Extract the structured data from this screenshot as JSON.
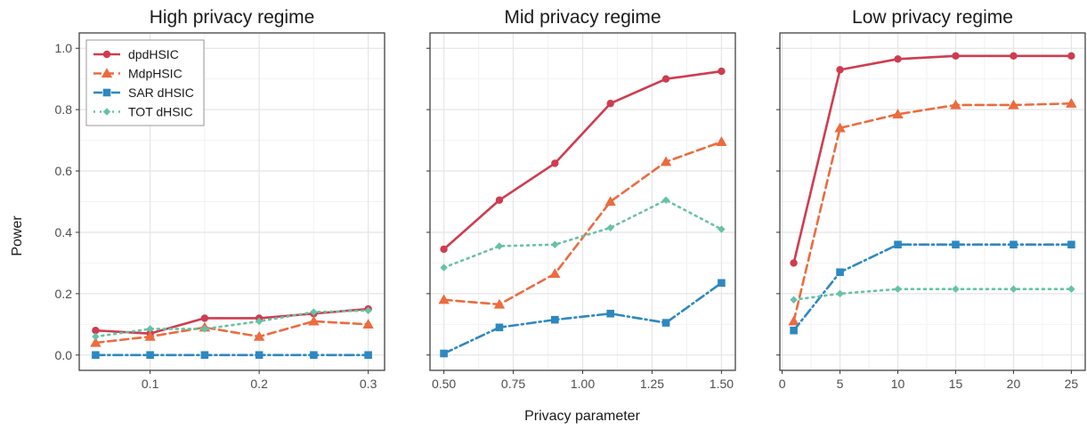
{
  "figure": {
    "ylabel": "Power",
    "xlabel": "Privacy parameter"
  },
  "series_styles": [
    {
      "name": "dpdHSIC",
      "color": "#cf3c4f",
      "marker": "circle",
      "dash": "solid"
    },
    {
      "name": "MdpHSIC",
      "color": "#ec6b3f",
      "marker": "triangle",
      "dash": "dashed"
    },
    {
      "name": "SAR dHSIC",
      "color": "#2e88c0",
      "marker": "square",
      "dash": "dotdash"
    },
    {
      "name": "TOT dHSIC",
      "color": "#66c2a5",
      "marker": "diamond",
      "dash": "dotted"
    }
  ],
  "legend": {
    "placement": "top-left of first panel",
    "entries": [
      "dpdHSIC",
      "MdpHSIC",
      "SAR dHSIC",
      "TOT dHSIC"
    ]
  },
  "chart_data": [
    {
      "type": "line",
      "title": "High privacy regime",
      "x": [
        0.05,
        0.1,
        0.15,
        0.2,
        0.25,
        0.3
      ],
      "xlim": [
        0.05,
        0.3
      ],
      "xticks": [
        0.1,
        0.2,
        0.3
      ],
      "xtick_labels": [
        "0.1",
        "0.2",
        "0.3"
      ],
      "ylim": [
        0,
        1
      ],
      "yticks": [
        0,
        0.2,
        0.4,
        0.6,
        0.8,
        1
      ],
      "ytick_labels": [
        "0.0",
        "0.2",
        "0.4",
        "0.6",
        "0.8",
        "1.0"
      ],
      "grid": true,
      "series": [
        {
          "name": "dpdHSIC",
          "values": [
            0.08,
            0.07,
            0.12,
            0.12,
            0.135,
            0.15
          ]
        },
        {
          "name": "MdpHSIC",
          "values": [
            0.04,
            0.06,
            0.09,
            0.06,
            0.11,
            0.1
          ]
        },
        {
          "name": "SAR dHSIC",
          "values": [
            0.0,
            0.0,
            0.0,
            0.0,
            0.0,
            0.0
          ]
        },
        {
          "name": "TOT dHSIC",
          "values": [
            0.06,
            0.085,
            0.085,
            0.11,
            0.14,
            0.145
          ]
        }
      ]
    },
    {
      "type": "line",
      "title": "Mid privacy regime",
      "x": [
        0.5,
        0.7,
        0.9,
        1.1,
        1.3,
        1.5
      ],
      "xlim": [
        0.5,
        1.5
      ],
      "xticks": [
        0.5,
        0.75,
        1.0,
        1.25,
        1.5
      ],
      "xtick_labels": [
        "0.50",
        "0.75",
        "1.00",
        "1.25",
        "1.50"
      ],
      "ylim": [
        0,
        1
      ],
      "grid": true,
      "series": [
        {
          "name": "dpdHSIC",
          "values": [
            0.345,
            0.505,
            0.625,
            0.82,
            0.9,
            0.925
          ]
        },
        {
          "name": "MdpHSIC",
          "values": [
            0.18,
            0.165,
            0.265,
            0.5,
            0.63,
            0.695
          ]
        },
        {
          "name": "SAR dHSIC",
          "values": [
            0.005,
            0.09,
            0.115,
            0.135,
            0.105,
            0.235
          ]
        },
        {
          "name": "TOT dHSIC",
          "values": [
            0.285,
            0.355,
            0.36,
            0.415,
            0.505,
            0.41
          ]
        }
      ]
    },
    {
      "type": "line",
      "title": "Low privacy regime",
      "x": [
        1,
        5,
        10,
        15,
        20,
        25
      ],
      "xlim": [
        1,
        25
      ],
      "xticks": [
        0,
        5,
        10,
        15,
        20,
        25
      ],
      "xtick_labels": [
        "0",
        "5",
        "10",
        "15",
        "20",
        "25"
      ],
      "ylim": [
        0,
        1
      ],
      "grid": true,
      "series": [
        {
          "name": "dpdHSIC",
          "values": [
            0.3,
            0.93,
            0.965,
            0.975,
            0.975,
            0.975
          ]
        },
        {
          "name": "MdpHSIC",
          "values": [
            0.11,
            0.74,
            0.785,
            0.815,
            0.815,
            0.82
          ]
        },
        {
          "name": "SAR dHSIC",
          "values": [
            0.08,
            0.27,
            0.36,
            0.36,
            0.36,
            0.36
          ]
        },
        {
          "name": "TOT dHSIC",
          "values": [
            0.18,
            0.2,
            0.215,
            0.215,
            0.215,
            0.215
          ]
        }
      ]
    }
  ]
}
